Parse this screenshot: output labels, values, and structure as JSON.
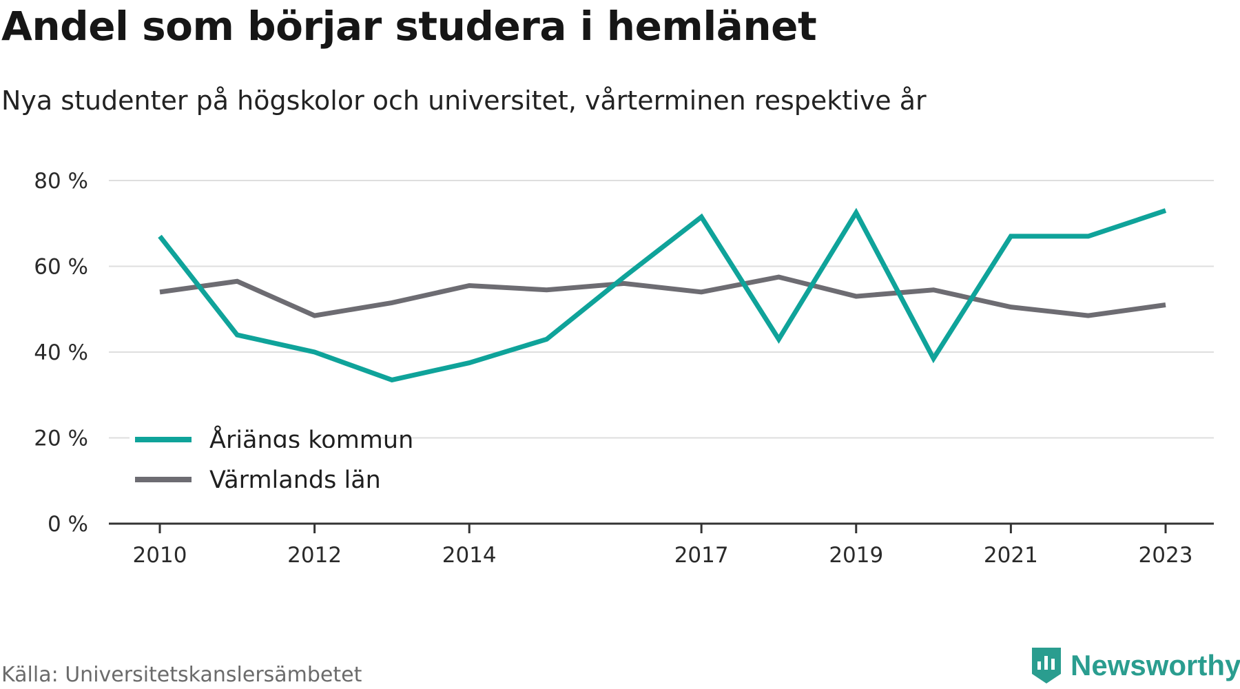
{
  "header": {
    "title": "Andel som börjar studera i hemlänet",
    "subtitle": "Nya studenter på högskolor och universitet, vårterminen respektive år"
  },
  "footer": {
    "source": "Källa: Universitetskanslersämbetet",
    "brand": "Newsworthy",
    "brand_color": "#2a9d8f"
  },
  "chart_data": {
    "type": "line",
    "x": [
      2010,
      2011,
      2012,
      2013,
      2014,
      2015,
      2016,
      2017,
      2018,
      2019,
      2020,
      2021,
      2022,
      2023
    ],
    "x_tick_labels": [
      "2010",
      "2012",
      "2014",
      "2017",
      "2019",
      "2021",
      "2023"
    ],
    "y_tick_labels": [
      "0 %",
      "20 %",
      "40 %",
      "60 %",
      "80 %"
    ],
    "ylim": [
      0,
      80
    ],
    "grid": true,
    "legend_position": "bottom-left",
    "series": [
      {
        "name": "Årjängs kommun",
        "color": "#0fa39a",
        "values": [
          67,
          44,
          40,
          33.5,
          37.5,
          43,
          57.5,
          71.5,
          43,
          72.5,
          38.5,
          67,
          67,
          73
        ]
      },
      {
        "name": "Värmlands län",
        "color": "#6d6c72",
        "values": [
          54,
          56.5,
          48.5,
          51.5,
          55.5,
          54.5,
          56,
          54,
          57.5,
          53,
          54.5,
          50.5,
          48.5,
          51
        ]
      }
    ]
  }
}
